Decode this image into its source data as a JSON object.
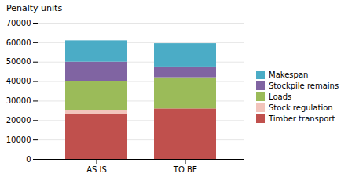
{
  "chart_data": {
    "type": "bar",
    "title": "Penalty units",
    "categories": [
      "AS IS",
      "TO BE"
    ],
    "series": [
      {
        "name": "Timber transport",
        "values": [
          23000,
          26000
        ],
        "color": "#c0504d"
      },
      {
        "name": "Stock regulation",
        "values": [
          2000,
          0
        ],
        "color": "#f2c4bc"
      },
      {
        "name": "Loads",
        "values": [
          15000,
          16000
        ],
        "color": "#9bbb59"
      },
      {
        "name": "Stockpile remains",
        "values": [
          10000,
          5500
        ],
        "color": "#8064a2"
      },
      {
        "name": "Makespan",
        "values": [
          11000,
          12000
        ],
        "color": "#4bacc6"
      }
    ],
    "stacked": true,
    "ylim": [
      0,
      70000
    ],
    "yticks": [
      0,
      10000,
      20000,
      30000,
      40000,
      50000,
      60000,
      70000
    ],
    "grid": true,
    "legend": "right"
  }
}
